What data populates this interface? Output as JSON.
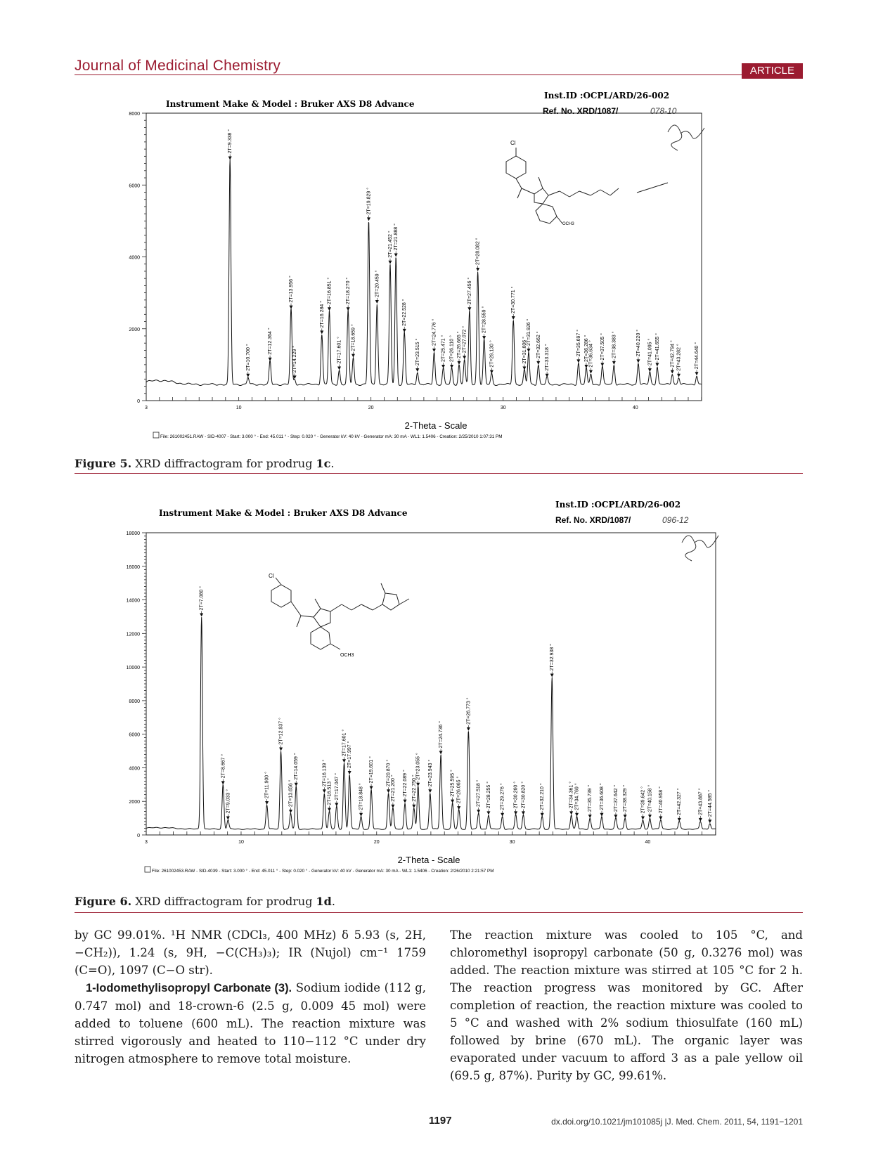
{
  "header": {
    "journal": "Journal of Medicinal Chemistry",
    "badge": "ARTICLE"
  },
  "figures": [
    {
      "caption_label": "Figure 5.",
      "caption_text": "XRD diffractogram for prodrug ",
      "caption_bold": "1c",
      "caption_end": ".",
      "instrument": "Instrument Make & Model : Bruker AXS D8 Advance",
      "inst_id": "Inst.ID :OCPL/ARD/26-002",
      "ref_no": "Ref. No.  XRD/1087/",
      "ref_hand": "078-10",
      "file_line": "File: 261002451.RAW - SID-4007 - Start: 3.000 ° - End: 45.011 ° - Step: 0.020 ° - Generator kV: 40 kV - Generator mA: 30 mA - WL1: 1.5406 - Creation: 2/25/2010 1:07:31 PM",
      "ome_label": "OCH3",
      "cl_label": "Cl"
    },
    {
      "caption_label": "Figure 6.",
      "caption_text": "XRD diffractogram for prodrug ",
      "caption_bold": "1d",
      "caption_end": ".",
      "instrument": "Instrument Make & Model : Bruker AXS D8 Advance",
      "inst_id": "Inst.ID :OCPL/ARD/26-002",
      "ref_no": "Ref. No.  XRD/1087/",
      "ref_hand": "096-12",
      "file_line": "File: 261002453.RAW - SID-4039 - Start: 3.000 ° - End: 45.011 ° - Step: 0.020 ° - Generator kV: 40 kV - Generator mA: 30 mA - WL1: 1.5406 - Creation: 2/26/2010 2:21:57 PM",
      "ome_label": "OCH3",
      "cl_label": "Cl"
    }
  ],
  "chart_data": [
    {
      "type": "line",
      "xlabel": "2-Theta - Scale",
      "ylabel": "",
      "xlim": [
        3,
        45.011
      ],
      "ylim": [
        0,
        8000
      ],
      "x_ticks": [
        3,
        10,
        20,
        30,
        40
      ],
      "y_ticks": [
        0,
        2000,
        4000,
        6000,
        8000
      ],
      "baseline": 450,
      "peaks": [
        {
          "x": 9.338,
          "y": 6700,
          "label": "2T=9.338 °"
        },
        {
          "x": 10.7,
          "y": 650,
          "label": "2T=10.700 °"
        },
        {
          "x": 12.364,
          "y": 1100,
          "label": "2T=12.364 °"
        },
        {
          "x": 13.956,
          "y": 2550,
          "label": "2T=13.956 °"
        },
        {
          "x": 14.229,
          "y": 600,
          "label": "2T=14.229 °"
        },
        {
          "x": 16.284,
          "y": 1850,
          "label": "2T=16.284 °"
        },
        {
          "x": 16.851,
          "y": 2500,
          "label": "2T=16.851 °"
        },
        {
          "x": 17.601,
          "y": 850,
          "label": "2T=17.601 °"
        },
        {
          "x": 18.27,
          "y": 2500,
          "label": "2T=18.270 °"
        },
        {
          "x": 18.659,
          "y": 1200,
          "label": "2T=18.659 °"
        },
        {
          "x": 19.829,
          "y": 5000,
          "label": "2T=19.829 °"
        },
        {
          "x": 20.459,
          "y": 2700,
          "label": "2T=20.459 °"
        },
        {
          "x": 21.452,
          "y": 3800,
          "label": "2T=21.452 °"
        },
        {
          "x": 21.888,
          "y": 4000,
          "label": "2T=21.888 °"
        },
        {
          "x": 22.528,
          "y": 1900,
          "label": "2T=22.528 °"
        },
        {
          "x": 23.515,
          "y": 800,
          "label": "2T=23.515 °"
        },
        {
          "x": 24.776,
          "y": 1350,
          "label": "2T=24.776 °"
        },
        {
          "x": 25.471,
          "y": 900,
          "label": "2T=25.471 °"
        },
        {
          "x": 26.11,
          "y": 900,
          "label": "2T=26.110 °"
        },
        {
          "x": 26.665,
          "y": 1000,
          "label": "2T=26.665 °"
        },
        {
          "x": 27.072,
          "y": 1150,
          "label": "2T=27.072 °"
        },
        {
          "x": 27.456,
          "y": 2500,
          "label": "2T=27.456 °"
        },
        {
          "x": 28.082,
          "y": 3600,
          "label": "2T=28.082 °"
        },
        {
          "x": 28.559,
          "y": 1700,
          "label": "2T=28.559 °"
        },
        {
          "x": 29.13,
          "y": 750,
          "label": "2T=29.130 °"
        },
        {
          "x": 30.771,
          "y": 2250,
          "label": "2T=30.771 °"
        },
        {
          "x": 31.606,
          "y": 850,
          "label": "2T=31.606 °"
        },
        {
          "x": 31.926,
          "y": 1350,
          "label": "2T=31.926 °"
        },
        {
          "x": 32.662,
          "y": 1000,
          "label": "2T=32.662 °"
        },
        {
          "x": 33.318,
          "y": 650,
          "label": "2T=33.318 °"
        },
        {
          "x": 35.697,
          "y": 1050,
          "label": "2T=35.697 °"
        },
        {
          "x": 36.286,
          "y": 900,
          "label": "2T=36.286 °"
        },
        {
          "x": 36.634,
          "y": 750,
          "label": "2T=36.634 °"
        },
        {
          "x": 37.505,
          "y": 950,
          "label": "2T=37.505 °"
        },
        {
          "x": 38.383,
          "y": 1000,
          "label": "2T=38.383 °"
        },
        {
          "x": 40.22,
          "y": 1050,
          "label": "2T=40.220 °"
        },
        {
          "x": 41.095,
          "y": 800,
          "label": "2T=41.095 °"
        },
        {
          "x": 41.655,
          "y": 950,
          "label": "2T=41.655 °"
        },
        {
          "x": 42.794,
          "y": 750,
          "label": "2T=42.794 °"
        },
        {
          "x": 43.282,
          "y": 650,
          "label": "2T=43.282 °"
        },
        {
          "x": 44.64,
          "y": 700,
          "label": "2T=44.640 °"
        }
      ]
    },
    {
      "type": "line",
      "xlabel": "2-Theta - Scale",
      "ylabel": "",
      "xlim": [
        3,
        45.011
      ],
      "ylim": [
        0,
        18000
      ],
      "x_ticks": [
        3,
        10,
        20,
        30,
        40
      ],
      "y_ticks": [
        0,
        2000,
        4000,
        6000,
        8000,
        10000,
        12000,
        14000,
        16000,
        18000
      ],
      "baseline": 350,
      "peaks": [
        {
          "x": 7.08,
          "y": 13000,
          "label": "2T=7.080 °"
        },
        {
          "x": 8.667,
          "y": 3000,
          "label": "2T=8.667 °"
        },
        {
          "x": 9.033,
          "y": 900,
          "label": "2T=9.033 °"
        },
        {
          "x": 11.9,
          "y": 1800,
          "label": "2T=11.900 °"
        },
        {
          "x": 12.937,
          "y": 5000,
          "label": "2T=12.937 °"
        },
        {
          "x": 13.656,
          "y": 1300,
          "label": "2T=13.656 °"
        },
        {
          "x": 14.059,
          "y": 2900,
          "label": "2T=14.059 °"
        },
        {
          "x": 16.139,
          "y": 2500,
          "label": "2T=16.139 °"
        },
        {
          "x": 16.513,
          "y": 1400,
          "label": "2T=16.513 °"
        },
        {
          "x": 17.047,
          "y": 1700,
          "label": "2T=17.047 °"
        },
        {
          "x": 17.601,
          "y": 4300,
          "label": "2T=17.601 °"
        },
        {
          "x": 17.997,
          "y": 3600,
          "label": "2T=17.997 °"
        },
        {
          "x": 18.848,
          "y": 1100,
          "label": "2T=18.848 °"
        },
        {
          "x": 19.601,
          "y": 2700,
          "label": "2T=19.601 °"
        },
        {
          "x": 20.87,
          "y": 2500,
          "label": "2T=20.870 °"
        },
        {
          "x": 21.2,
          "y": 1600,
          "label": "2T=21.200 °"
        },
        {
          "x": 22.089,
          "y": 1900,
          "label": "2T=22.089 °"
        },
        {
          "x": 22.75,
          "y": 1600,
          "label": "2T=22.750 °"
        },
        {
          "x": 23.055,
          "y": 2900,
          "label": "2T=23.055 °"
        },
        {
          "x": 23.943,
          "y": 2500,
          "label": "2T=23.943 °"
        },
        {
          "x": 24.736,
          "y": 4800,
          "label": "2T=24.736 °"
        },
        {
          "x": 25.595,
          "y": 1900,
          "label": "2T=25.595 °"
        },
        {
          "x": 26.065,
          "y": 1500,
          "label": "2T=26.065 °"
        },
        {
          "x": 26.773,
          "y": 6200,
          "label": "2T=26.773 °"
        },
        {
          "x": 27.518,
          "y": 1300,
          "label": "2T=27.518 °"
        },
        {
          "x": 28.255,
          "y": 1200,
          "label": "2T=28.255 °"
        },
        {
          "x": 29.276,
          "y": 1100,
          "label": "2T=29.276 °"
        },
        {
          "x": 30.26,
          "y": 1200,
          "label": "2T=30.260 °"
        },
        {
          "x": 30.82,
          "y": 1200,
          "label": "2T=30.820 °"
        },
        {
          "x": 32.21,
          "y": 1100,
          "label": "2T=32.210 °"
        },
        {
          "x": 32.938,
          "y": 9400,
          "label": "2T=32.938 °"
        },
        {
          "x": 34.361,
          "y": 1200,
          "label": "2T=34.361 °"
        },
        {
          "x": 34.769,
          "y": 1100,
          "label": "2T=34.769 °"
        },
        {
          "x": 35.739,
          "y": 1000,
          "label": "2T=35.739 °"
        },
        {
          "x": 36.608,
          "y": 1100,
          "label": "2T=36.608 °"
        },
        {
          "x": 37.642,
          "y": 1000,
          "label": "2T=37.642 °"
        },
        {
          "x": 38.329,
          "y": 1000,
          "label": "2T=38.329 °"
        },
        {
          "x": 39.642,
          "y": 900,
          "label": "2T=39.642 °"
        },
        {
          "x": 40.158,
          "y": 1000,
          "label": "2T=40.158 °"
        },
        {
          "x": 40.958,
          "y": 900,
          "label": "2T=40.958 °"
        },
        {
          "x": 42.327,
          "y": 800,
          "label": "2T=42.327 °"
        },
        {
          "x": 43.887,
          "y": 800,
          "label": "2T=43.887 °"
        },
        {
          "x": 44.585,
          "y": 700,
          "label": "2T=44.585 °"
        }
      ]
    }
  ],
  "body": {
    "left_p1": "by GC 99.01%. ¹H NMR (CDCl₃, 400 MHz) δ 5.93 (s, 2H, −CH₂)), 1.24 (s, 9H, −C(CH₃)₃); IR (Nujol) cm⁻¹ 1759 (C=O), 1097 (C−O str).",
    "left_heading": "1-Iodomethylisopropyl Carbonate (3).",
    "left_p2": " Sodium iodide (112 g, 0.747 mol) and 18-crown-6 (2.5 g, 0.009 45 mol) were added to toluene (600 mL). The reaction mixture was stirred vigorously and heated to 110−112 °C under dry nitrogen atmosphere to remove total moisture.",
    "right_p1": "The reaction mixture was cooled to 105 °C, and chloromethyl isopropyl carbonate (50 g, 0.3276 mol) was added. The reaction mixture was stirred at 105 °C for 2 h. The reaction progress was monitored by GC. After completion of reaction, the reaction mixture was cooled to 5 °C and washed with 2% sodium thiosulfate (160 mL) followed by brine (670 mL). The organic layer was evaporated under vacuum to afford 3 as a pale yellow oil (69.5 g, 87%). Purity by GC, 99.61%."
  },
  "footer": {
    "page": "1197",
    "doi": "dx.doi.org/10.1021/jm101085j |J. Med. Chem. 2011, 54, 1191−1201"
  }
}
